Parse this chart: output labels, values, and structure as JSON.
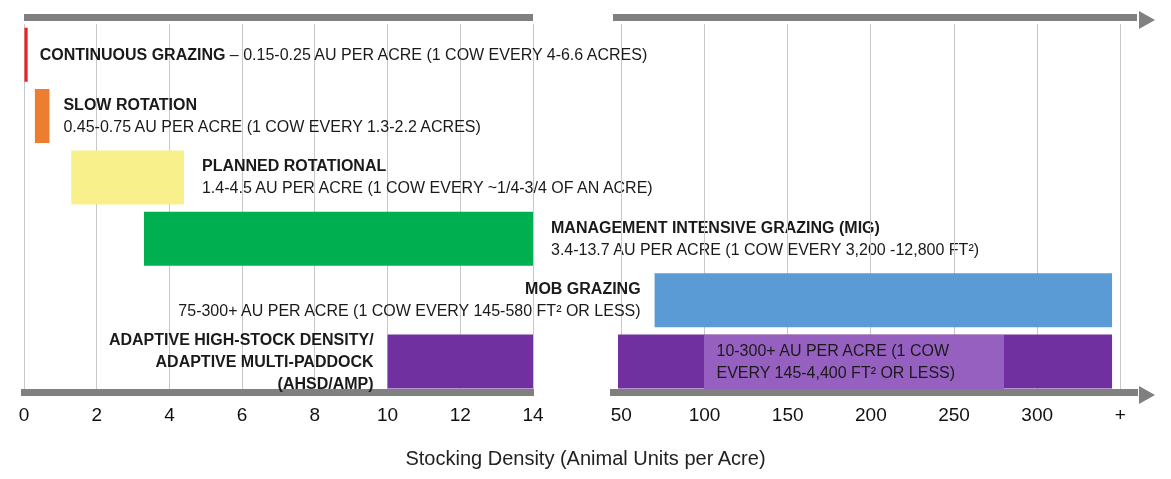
{
  "chart_data": [
    {
      "type": "bar",
      "orientation": "horizontal",
      "xlabel": "Stocking Density (Animal Units per Acre)",
      "categories": [
        null,
        null,
        null,
        null,
        null,
        null
      ],
      "base": [
        0,
        0.3,
        1.3,
        3.3,
        null,
        10
      ],
      "values": [
        0.1,
        0.4,
        3.1,
        10.7,
        null,
        4
      ],
      "colors": [
        "#ee1c24",
        "#ed7d31",
        "#f8f08a",
        "#00b050",
        "#5b9bd5",
        "#7030a0"
      ],
      "xlim": [
        0,
        14
      ],
      "xticks": [
        0,
        2,
        4,
        6,
        8,
        10,
        12,
        14
      ],
      "grid": "x",
      "annotations": [
        "CONTINUOUS GRAZING – 0.15-0.25 AU PER ACRE (1 COW EVERY 4-6.6 ACRES)",
        "SLOW ROTATION\n0.45-0.75 AU PER ACRE (1 COW EVERY 1.3-2.2 ACRES)",
        "PLANNED ROTATIONAL\n1.4-4.5 AU PER ACRE (1 COW EVERY ~1/4-3/4 OF AN ACRE)",
        "MANAGEMENT INTENSIVE GRAZING (MIG)\n3.4-13.7 AU PER ACRE (1 COW EVERY 3,200 -12,800 FT²)",
        "ADAPTIVE HIGH-STOCK DENSITY/\nADAPTIVE MULTI-PADDOCK\n(AHSD/AMP)"
      ]
    },
    {
      "type": "bar",
      "orientation": "horizontal",
      "categories": [
        null,
        null,
        null,
        null,
        null,
        null
      ],
      "base": [
        null,
        null,
        null,
        null,
        70,
        48
      ],
      "values": [
        null,
        null,
        null,
        null,
        275,
        297
      ],
      "colors": [
        "#ee1c24",
        "#ed7d31",
        "#f8f08a",
        "#00b050",
        "#5b9bd5",
        "#7030a0"
      ],
      "xlim": [
        45,
        360
      ],
      "xticks": [
        50,
        100,
        150,
        200,
        250,
        300,
        {
          "value": 350,
          "label": "+"
        }
      ],
      "grid": "x",
      "annotations": [
        "MOB GRAZING\n75-300+ AU PER ACRE (1 COW EVERY 145-580 FT² OR LESS)",
        "10-300+ AU PER ACRE (1 COW\nEVERY 145-4,400 FT² OR LESS)"
      ]
    }
  ]
}
